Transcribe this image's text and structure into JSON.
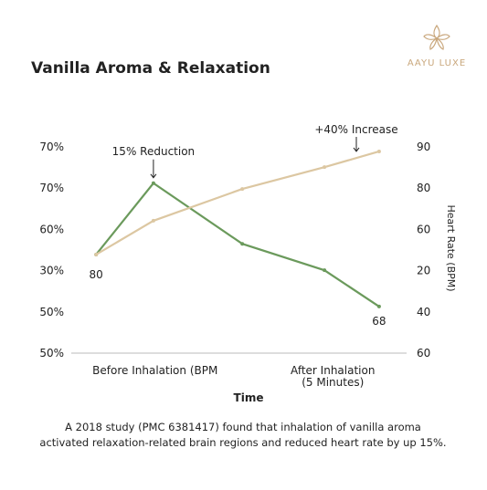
{
  "brand": "AAYU LUXE",
  "chart_data": {
    "type": "line",
    "title": "Vanilla Aroma & Relaxation",
    "x_label": "Time",
    "y2_label": "Heart Rate (BPM)",
    "caption": [
      "A 2018 study (PMC 6381417)  found that inhalation of vanilla aroma",
      "activated relaxation-related brain regions and reduced heart rate by up 15%."
    ],
    "x": [
      0.74,
      2.45,
      5.1,
      7.55,
      9.18
    ],
    "xlim": [
      0,
      10
    ],
    "xticks": [
      {
        "value": 2.5,
        "label": "Before Inhalation (BPM"
      },
      {
        "value": 7.8,
        "label": "After Inhalation\n(5 Minutes)"
      }
    ],
    "ylim": [
      0,
      5
    ],
    "yticks": [
      {
        "value": 0,
        "label": "50%"
      },
      {
        "value": 1,
        "label": "50%"
      },
      {
        "value": 2,
        "label": "30%"
      },
      {
        "value": 3,
        "label": "60%"
      },
      {
        "value": 4,
        "label": "70%"
      },
      {
        "value": 5,
        "label": "70%"
      }
    ],
    "y2lim": [
      0,
      5
    ],
    "y2ticks": [
      {
        "value": 0,
        "label": "60"
      },
      {
        "value": 1,
        "label": "40"
      },
      {
        "value": 2,
        "label": "20"
      },
      {
        "value": 3,
        "label": "60"
      },
      {
        "value": 4,
        "label": "80"
      },
      {
        "value": 5,
        "label": "90"
      }
    ],
    "series": [
      {
        "color": "#6b9a5c",
        "values": [
          2.39,
          4.12,
          2.65,
          2.01,
          1.13
        ]
      },
      {
        "color": "#dcc7a2",
        "values": [
          2.39,
          3.21,
          3.98,
          4.51,
          4.89
        ]
      }
    ],
    "annotations": [
      "80",
      "68",
      "15% Reduction",
      "+40% Increase"
    ]
  }
}
